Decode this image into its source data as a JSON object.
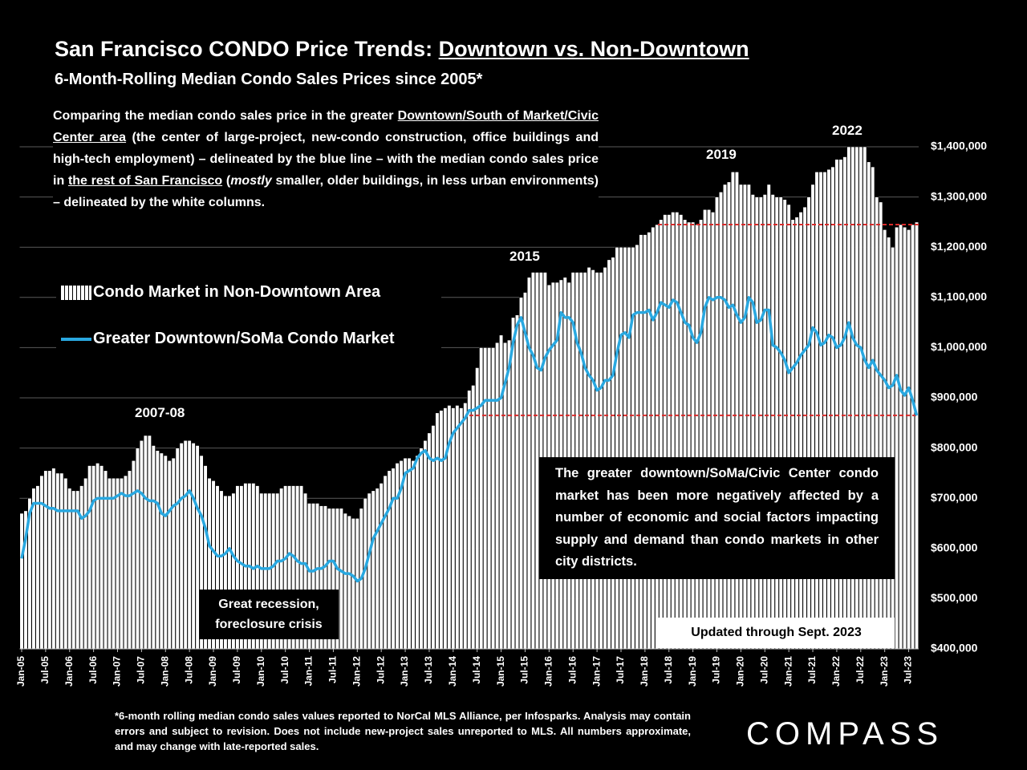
{
  "chart_data": {
    "type": "bar",
    "title": [
      "San Francisco CONDO Price Trends: ",
      "Downtown vs. Non-Downtown"
    ],
    "subtitle": "6-Month-Rolling Median Condo Sales Prices since 2005*",
    "description": [
      "Comparing the median condo sales price in the greater ",
      "Downtown/South of Market/Civic Center area",
      " (the center of large-project, new-condo construction, office buildings and high-tech employment) – delineated by the blue line – with the median condo sales price in ",
      "the rest of San Francisco",
      " (",
      "mostly",
      " smaller, older buildings, in less urban environments) – delineated by the white columns."
    ],
    "annotations": [
      "2007-08",
      "2015",
      "2019",
      "2022"
    ],
    "recession_note": "Great recession, foreclosure crisis",
    "callout": "The greater downtown/SoMa/Civic Center condo market has been more negatively affected by a number of economic and social factors impacting supply and demand than condo markets in other city districts.",
    "updated": "Updated through Sept. 2023",
    "footnote": "*6-month rolling median condo sales values reported to NorCal MLS Alliance, per Infosparks. Analysis may contain errors and subject to revision. Does not include new-project sales unreported to MLS. All numbers approximate, and may change with late-reported sales.",
    "logo": "COMPASS",
    "ylim": [
      400000,
      1400000
    ],
    "yticks": [
      {
        "value": 400000,
        "label": "$400,000"
      },
      {
        "value": 500000,
        "label": "$500,000"
      },
      {
        "value": 600000,
        "label": "$600,000"
      },
      {
        "value": 700000,
        "label": "$700,000"
      },
      {
        "value": 800000,
        "label": "$800,000"
      },
      {
        "value": 900000,
        "label": "$900,000"
      },
      {
        "value": 1000000,
        "label": "$1,000,000"
      },
      {
        "value": 1100000,
        "label": "$1,100,000"
      },
      {
        "value": 1200000,
        "label": "$1,200,000"
      },
      {
        "value": 1300000,
        "label": "$1,300,000"
      },
      {
        "value": 1400000,
        "label": "$1,400,000"
      }
    ],
    "grid": true,
    "reference_lines": [
      {
        "value": 1245000,
        "color": "#d92a2a"
      },
      {
        "value": 865000,
        "color": "#d92a2a"
      }
    ],
    "categories": [
      "Jan-05",
      null,
      null,
      null,
      null,
      null,
      "Jul-05",
      null,
      null,
      null,
      null,
      null,
      "Jan-06",
      null,
      null,
      null,
      null,
      null,
      "Jul-06",
      null,
      null,
      null,
      null,
      null,
      "Jan-07",
      null,
      null,
      null,
      null,
      null,
      "Jul-07",
      null,
      null,
      null,
      null,
      null,
      "Jan-08",
      null,
      null,
      null,
      null,
      null,
      "Jul-08",
      null,
      null,
      null,
      null,
      null,
      "Jan-09",
      null,
      null,
      null,
      null,
      null,
      "Jul-09",
      null,
      null,
      null,
      null,
      null,
      "Jan-10",
      null,
      null,
      null,
      null,
      null,
      "Jul-10",
      null,
      null,
      null,
      null,
      null,
      "Jan-11",
      null,
      null,
      null,
      null,
      null,
      "Jul-11",
      null,
      null,
      null,
      null,
      null,
      "Jan-12",
      null,
      null,
      null,
      null,
      null,
      "Jul-12",
      null,
      null,
      null,
      null,
      null,
      "Jan-13",
      null,
      null,
      null,
      null,
      null,
      "Jul-13",
      null,
      null,
      null,
      null,
      null,
      "Jan-14",
      null,
      null,
      null,
      null,
      null,
      "Jul-14",
      null,
      null,
      null,
      null,
      null,
      "Jan-15",
      null,
      null,
      null,
      null,
      null,
      "Jul-15",
      null,
      null,
      null,
      null,
      null,
      "Jan-16",
      null,
      null,
      null,
      null,
      null,
      "Jul-16",
      null,
      null,
      null,
      null,
      null,
      "Jan-17",
      null,
      null,
      null,
      null,
      null,
      "Jul-17",
      null,
      null,
      null,
      null,
      null,
      "Jan-18",
      null,
      null,
      null,
      null,
      null,
      "Jul-18",
      null,
      null,
      null,
      null,
      null,
      "Jan-19",
      null,
      null,
      null,
      null,
      null,
      "Jul-19",
      null,
      null,
      null,
      null,
      null,
      "Jan-20",
      null,
      null,
      null,
      null,
      null,
      "Jul-20",
      null,
      null,
      null,
      null,
      null,
      "Jan-21",
      null,
      null,
      null,
      null,
      null,
      "Jul-21",
      null,
      null,
      null,
      null,
      null,
      "Jan-22",
      null,
      null,
      null,
      null,
      null,
      "Jul-22",
      null,
      null,
      null,
      null,
      null,
      "Jan-23",
      null,
      null,
      null,
      null,
      null,
      "Jul-23",
      null,
      null
    ],
    "series": [
      {
        "name": "Condo Market in Non-Downtown Area",
        "type": "bar",
        "color": "#ffffff",
        "values": [
          670000,
          675000,
          700000,
          720000,
          725000,
          745000,
          755000,
          755000,
          760000,
          750000,
          750000,
          740000,
          720000,
          715000,
          715000,
          725000,
          740000,
          765000,
          765000,
          770000,
          765000,
          755000,
          740000,
          740000,
          740000,
          740000,
          745000,
          755000,
          775000,
          800000,
          815000,
          825000,
          825000,
          805000,
          795000,
          790000,
          785000,
          775000,
          780000,
          800000,
          810000,
          815000,
          815000,
          810000,
          805000,
          785000,
          765000,
          740000,
          735000,
          725000,
          715000,
          705000,
          705000,
          710000,
          725000,
          725000,
          730000,
          730000,
          730000,
          725000,
          710000,
          710000,
          710000,
          710000,
          710000,
          720000,
          725000,
          725000,
          725000,
          725000,
          725000,
          710000,
          690000,
          690000,
          690000,
          685000,
          685000,
          680000,
          680000,
          680000,
          680000,
          670000,
          665000,
          660000,
          660000,
          680000,
          700000,
          710000,
          715000,
          720000,
          730000,
          745000,
          755000,
          760000,
          770000,
          775000,
          780000,
          780000,
          775000,
          785000,
          800000,
          815000,
          830000,
          845000,
          870000,
          875000,
          880000,
          885000,
          880000,
          885000,
          880000,
          890000,
          915000,
          925000,
          960000,
          1000000,
          1000000,
          1000000,
          1000000,
          1010000,
          1025000,
          1010000,
          1015000,
          1060000,
          1065000,
          1100000,
          1110000,
          1140000,
          1150000,
          1150000,
          1150000,
          1150000,
          1125000,
          1130000,
          1130000,
          1135000,
          1140000,
          1130000,
          1150000,
          1150000,
          1150000,
          1150000,
          1160000,
          1155000,
          1150000,
          1150000,
          1160000,
          1175000,
          1180000,
          1200000,
          1200000,
          1200000,
          1200000,
          1200000,
          1205000,
          1225000,
          1225000,
          1230000,
          1240000,
          1245000,
          1255000,
          1265000,
          1265000,
          1270000,
          1270000,
          1265000,
          1255000,
          1250000,
          1250000,
          1245000,
          1255000,
          1275000,
          1275000,
          1270000,
          1300000,
          1310000,
          1325000,
          1330000,
          1350000,
          1350000,
          1325000,
          1325000,
          1325000,
          1305000,
          1300000,
          1300000,
          1305000,
          1325000,
          1305000,
          1300000,
          1300000,
          1295000,
          1285000,
          1255000,
          1260000,
          1270000,
          1280000,
          1300000,
          1325000,
          1350000,
          1350000,
          1350000,
          1355000,
          1360000,
          1375000,
          1375000,
          1380000,
          1400000,
          1400000,
          1400000,
          1400000,
          1400000,
          1370000,
          1360000,
          1300000,
          1290000,
          1235000,
          1220000,
          1200000,
          1240000,
          1245000,
          1240000,
          1235000,
          1245000,
          1250000
        ]
      },
      {
        "name": "Greater Downtown/SoMa Condo Market",
        "type": "line",
        "color": "#29a8e0",
        "values": [
          580000,
          620000,
          670000,
          690000,
          690000,
          690000,
          685000,
          680000,
          680000,
          675000,
          675000,
          675000,
          675000,
          675000,
          675000,
          660000,
          665000,
          675000,
          695000,
          700000,
          700000,
          700000,
          700000,
          700000,
          705000,
          710000,
          705000,
          705000,
          710000,
          715000,
          710000,
          700000,
          695000,
          695000,
          690000,
          670000,
          665000,
          675000,
          685000,
          690000,
          700000,
          705000,
          715000,
          700000,
          680000,
          665000,
          640000,
          605000,
          595000,
          585000,
          585000,
          590000,
          600000,
          585000,
          575000,
          570000,
          565000,
          565000,
          560000,
          565000,
          560000,
          560000,
          560000,
          565000,
          575000,
          575000,
          580000,
          590000,
          585000,
          575000,
          570000,
          570000,
          555000,
          555000,
          560000,
          560000,
          565000,
          575000,
          575000,
          560000,
          555000,
          550000,
          550000,
          545000,
          535000,
          540000,
          560000,
          590000,
          620000,
          635000,
          650000,
          665000,
          680000,
          700000,
          700000,
          720000,
          750000,
          755000,
          760000,
          780000,
          790000,
          795000,
          780000,
          775000,
          780000,
          775000,
          780000,
          810000,
          830000,
          840000,
          850000,
          860000,
          875000,
          875000,
          880000,
          885000,
          895000,
          895000,
          895000,
          895000,
          900000,
          930000,
          960000,
          1010000,
          1045000,
          1060000,
          1030000,
          1000000,
          985000,
          960000,
          955000,
          980000,
          995000,
          1005000,
          1015000,
          1070000,
          1060000,
          1060000,
          1050000,
          1010000,
          990000,
          960000,
          945000,
          935000,
          915000,
          920000,
          935000,
          935000,
          945000,
          990000,
          1025000,
          1030000,
          1020000,
          1065000,
          1070000,
          1070000,
          1070000,
          1075000,
          1055000,
          1070000,
          1090000,
          1085000,
          1080000,
          1095000,
          1090000,
          1070000,
          1050000,
          1045000,
          1020000,
          1010000,
          1030000,
          1080000,
          1100000,
          1095000,
          1100000,
          1100000,
          1095000,
          1080000,
          1085000,
          1065000,
          1050000,
          1060000,
          1100000,
          1090000,
          1050000,
          1055000,
          1075000,
          1075000,
          1005000,
          1000000,
          990000,
          975000,
          950000,
          960000,
          970000,
          985000,
          995000,
          1005000,
          1040000,
          1030000,
          1005000,
          1010000,
          1025000,
          1020000,
          1000000,
          1005000,
          1020000,
          1050000,
          1020000,
          1005000,
          1000000,
          975000,
          960000,
          975000,
          955000,
          945000,
          935000,
          920000,
          925000,
          945000,
          915000,
          905000,
          920000,
          895000,
          865000
        ]
      }
    ]
  }
}
